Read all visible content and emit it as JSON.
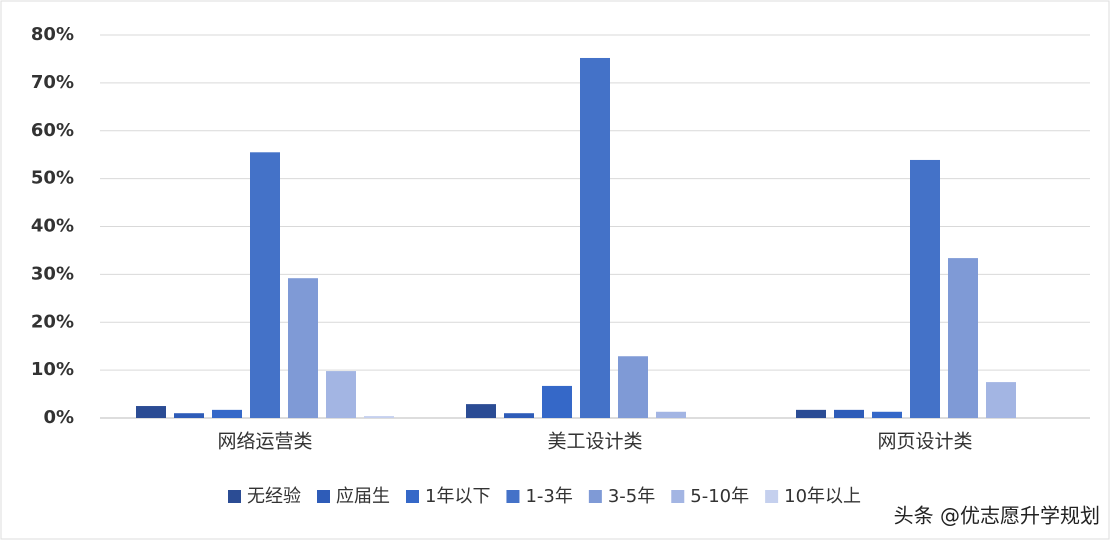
{
  "chart_data": {
    "type": "bar",
    "categories": [
      "网络运营类",
      "美工设计类",
      "网页设计类"
    ],
    "series": [
      {
        "name": "无经验",
        "color": "#2b4c94",
        "values": [
          2.5,
          2.9,
          1.7
        ]
      },
      {
        "name": "应届生",
        "color": "#2e5cb8",
        "values": [
          1.0,
          1.0,
          1.7
        ]
      },
      {
        "name": "1年以下",
        "color": "#3568c8",
        "values": [
          1.7,
          6.7,
          1.3
        ]
      },
      {
        "name": "1-3年",
        "color": "#4472c8",
        "values": [
          55.5,
          75.2,
          53.9
        ]
      },
      {
        "name": "3-5年",
        "color": "#7f9ad6",
        "values": [
          29.2,
          12.9,
          33.4
        ]
      },
      {
        "name": "5-10年",
        "color": "#a3b5e3",
        "values": [
          9.8,
          1.3,
          7.5
        ]
      },
      {
        "name": "10年以上",
        "color": "#c5d0ee",
        "values": [
          0.4,
          0,
          0
        ]
      }
    ],
    "ylim": [
      0,
      80
    ],
    "yticks": [
      {
        "value": 0,
        "label": "0%"
      },
      {
        "value": 10,
        "label": "10%"
      },
      {
        "value": 20,
        "label": "20%"
      },
      {
        "value": 30,
        "label": "30%"
      },
      {
        "value": 40,
        "label": "40%"
      },
      {
        "value": 50,
        "label": "50%"
      },
      {
        "value": 60,
        "label": "60%"
      },
      {
        "value": 70,
        "label": "70%"
      },
      {
        "value": 80,
        "label": "80%"
      }
    ],
    "grid": true,
    "legend": "bottom",
    "credit": "头条 @优志愿升学规划"
  }
}
